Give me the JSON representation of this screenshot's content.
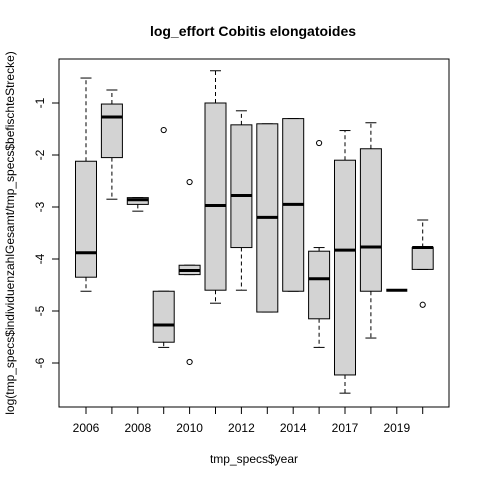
{
  "chart_data": {
    "type": "boxplot",
    "title": "log_effort Cobitis elongatoides",
    "xlabel": "tmp_specs$year",
    "ylabel": "log(tmp_specs$individuenzahlGesamt/tmp_specs$befischteStrecke)",
    "x_tick_labels": [
      "2006",
      "2008",
      "2010",
      "2012",
      "2014",
      "2017",
      "2019"
    ],
    "y_ticks": [
      -1,
      -2,
      -3,
      -4,
      -5,
      -6
    ],
    "ylim": [
      -6.8,
      -0.2
    ],
    "grid": false,
    "colors": {
      "box_fill": "#d3d3d3",
      "stroke": "#000000"
    },
    "boxes": [
      {
        "year": 2006,
        "whisker_low": -4.62,
        "q1": -4.35,
        "median": -3.88,
        "q3": -2.12,
        "whisker_high": -0.52,
        "outliers": []
      },
      {
        "year": 2007,
        "whisker_low": -2.85,
        "q1": -2.05,
        "median": -1.27,
        "q3": -1.02,
        "whisker_high": -0.75,
        "outliers": []
      },
      {
        "year": 2008,
        "whisker_low": -3.08,
        "q1": -2.95,
        "median": -2.86,
        "q3": -2.82,
        "whisker_high": -2.82,
        "outliers": []
      },
      {
        "year": 2009,
        "whisker_low": -5.7,
        "q1": -5.6,
        "median": -5.27,
        "q3": -4.62,
        "whisker_high": -4.62,
        "outliers": [
          -1.52
        ]
      },
      {
        "year": 2010,
        "whisker_low": -4.3,
        "q1": -4.3,
        "median": -4.22,
        "q3": -4.12,
        "whisker_high": -4.12,
        "outliers": [
          -2.52,
          -5.98
        ]
      },
      {
        "year": 2011,
        "whisker_low": -4.85,
        "q1": -4.6,
        "median": -2.97,
        "q3": -1.0,
        "whisker_high": -0.38,
        "outliers": []
      },
      {
        "year": 2012,
        "whisker_low": -4.6,
        "q1": -3.78,
        "median": -2.78,
        "q3": -1.42,
        "whisker_high": -1.15,
        "outliers": []
      },
      {
        "year": 2013,
        "whisker_low": -5.02,
        "q1": -5.02,
        "median": -3.2,
        "q3": -1.4,
        "whisker_high": -1.4,
        "outliers": []
      },
      {
        "year": 2014,
        "whisker_low": -4.62,
        "q1": -4.62,
        "median": -2.95,
        "q3": -1.3,
        "whisker_high": -1.3,
        "outliers": []
      },
      {
        "year": 2015,
        "whisker_low": -5.7,
        "q1": -5.15,
        "median": -4.38,
        "q3": -3.85,
        "whisker_high": -3.78,
        "outliers": [
          -1.77
        ]
      },
      {
        "year": 2017,
        "whisker_low": -6.58,
        "q1": -6.23,
        "median": -3.83,
        "q3": -2.1,
        "whisker_high": -1.53,
        "outliers": []
      },
      {
        "year": 2018,
        "whisker_low": -5.52,
        "q1": -4.62,
        "median": -3.77,
        "q3": -1.88,
        "whisker_high": -1.38,
        "outliers": []
      },
      {
        "year": 2019,
        "whisker_low": -4.6,
        "q1": -4.6,
        "median": -4.6,
        "q3": -4.6,
        "whisker_high": -4.6,
        "outliers": []
      },
      {
        "year": 2020,
        "whisker_low": -4.2,
        "q1": -4.2,
        "median": -3.78,
        "q3": -3.78,
        "whisker_high": -3.25,
        "outliers": [
          -4.88
        ]
      }
    ]
  }
}
